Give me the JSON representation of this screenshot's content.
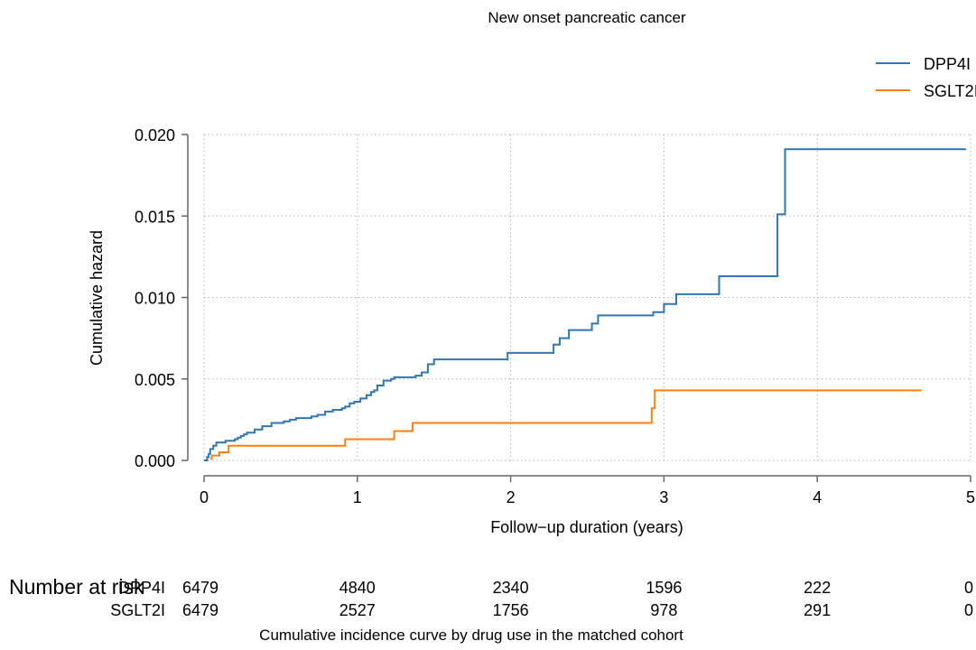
{
  "chart_data": {
    "type": "line",
    "title": "New onset pancreatic cancer",
    "xlabel": "Follow−up duration (years)",
    "ylabel": "Cumulative hazard",
    "xlim": [
      0,
      5
    ],
    "ylim": [
      0,
      0.02
    ],
    "x_ticks": [
      0,
      1,
      2,
      3,
      4,
      5
    ],
    "x_tick_labels": [
      "0",
      "1",
      "2",
      "3",
      "4",
      "5"
    ],
    "y_ticks": [
      0,
      0.005,
      0.01,
      0.015,
      0.02
    ],
    "y_tick_labels": [
      "0.000",
      "0.005",
      "0.010",
      "0.015",
      "0.020"
    ],
    "grid": true,
    "legend_position": "top-right",
    "caption": "Cumulative incidence curve by drug use in the matched cohort",
    "series": [
      {
        "name": "DPP4I",
        "color": "#2f77b4",
        "step": true,
        "points": [
          [
            0.0,
            0.0
          ],
          [
            0.02,
            0.0002
          ],
          [
            0.03,
            0.0004
          ],
          [
            0.04,
            0.0007
          ],
          [
            0.06,
            0.0009
          ],
          [
            0.08,
            0.0011
          ],
          [
            0.14,
            0.0012
          ],
          [
            0.2,
            0.0013
          ],
          [
            0.22,
            0.0014
          ],
          [
            0.24,
            0.0015
          ],
          [
            0.26,
            0.0016
          ],
          [
            0.28,
            0.0017
          ],
          [
            0.33,
            0.0019
          ],
          [
            0.38,
            0.0021
          ],
          [
            0.44,
            0.0023
          ],
          [
            0.52,
            0.0024
          ],
          [
            0.56,
            0.0025
          ],
          [
            0.6,
            0.0026
          ],
          [
            0.7,
            0.0027
          ],
          [
            0.74,
            0.0028
          ],
          [
            0.79,
            0.003
          ],
          [
            0.84,
            0.0031
          ],
          [
            0.9,
            0.0032
          ],
          [
            0.92,
            0.0033
          ],
          [
            0.95,
            0.0035
          ],
          [
            0.98,
            0.0036
          ],
          [
            1.02,
            0.0038
          ],
          [
            1.06,
            0.004
          ],
          [
            1.09,
            0.0042
          ],
          [
            1.11,
            0.0043
          ],
          [
            1.13,
            0.0046
          ],
          [
            1.17,
            0.0049
          ],
          [
            1.22,
            0.005
          ],
          [
            1.24,
            0.0051
          ],
          [
            1.38,
            0.0052
          ],
          [
            1.42,
            0.0054
          ],
          [
            1.46,
            0.0059
          ],
          [
            1.5,
            0.0062
          ],
          [
            1.98,
            0.0066
          ],
          [
            2.28,
            0.0071
          ],
          [
            2.32,
            0.0075
          ],
          [
            2.38,
            0.008
          ],
          [
            2.53,
            0.0084
          ],
          [
            2.57,
            0.0089
          ],
          [
            2.93,
            0.0091
          ],
          [
            3.0,
            0.0096
          ],
          [
            3.08,
            0.0102
          ],
          [
            3.36,
            0.0113
          ],
          [
            3.74,
            0.0151
          ],
          [
            3.79,
            0.0191
          ],
          [
            4.97,
            0.0191
          ]
        ]
      },
      {
        "name": "SGLT2I",
        "color": "#ff7f0e",
        "step": true,
        "points": [
          [
            0.04,
            0.0001
          ],
          [
            0.05,
            0.0003
          ],
          [
            0.1,
            0.0005
          ],
          [
            0.16,
            0.0009
          ],
          [
            0.92,
            0.0013
          ],
          [
            1.24,
            0.0018
          ],
          [
            1.36,
            0.0023
          ],
          [
            2.92,
            0.0032
          ],
          [
            2.94,
            0.0043
          ],
          [
            4.68,
            0.0043
          ]
        ]
      }
    ]
  },
  "risk_table": {
    "heading": "Number at risk",
    "rows": [
      {
        "label": "DPP4I",
        "values": [
          "6479",
          "4840",
          "2340",
          "1596",
          "222",
          "0"
        ]
      },
      {
        "label": "SGLT2I",
        "values": [
          "6479",
          "2527",
          "1756",
          "978",
          "291",
          "0"
        ]
      }
    ]
  }
}
